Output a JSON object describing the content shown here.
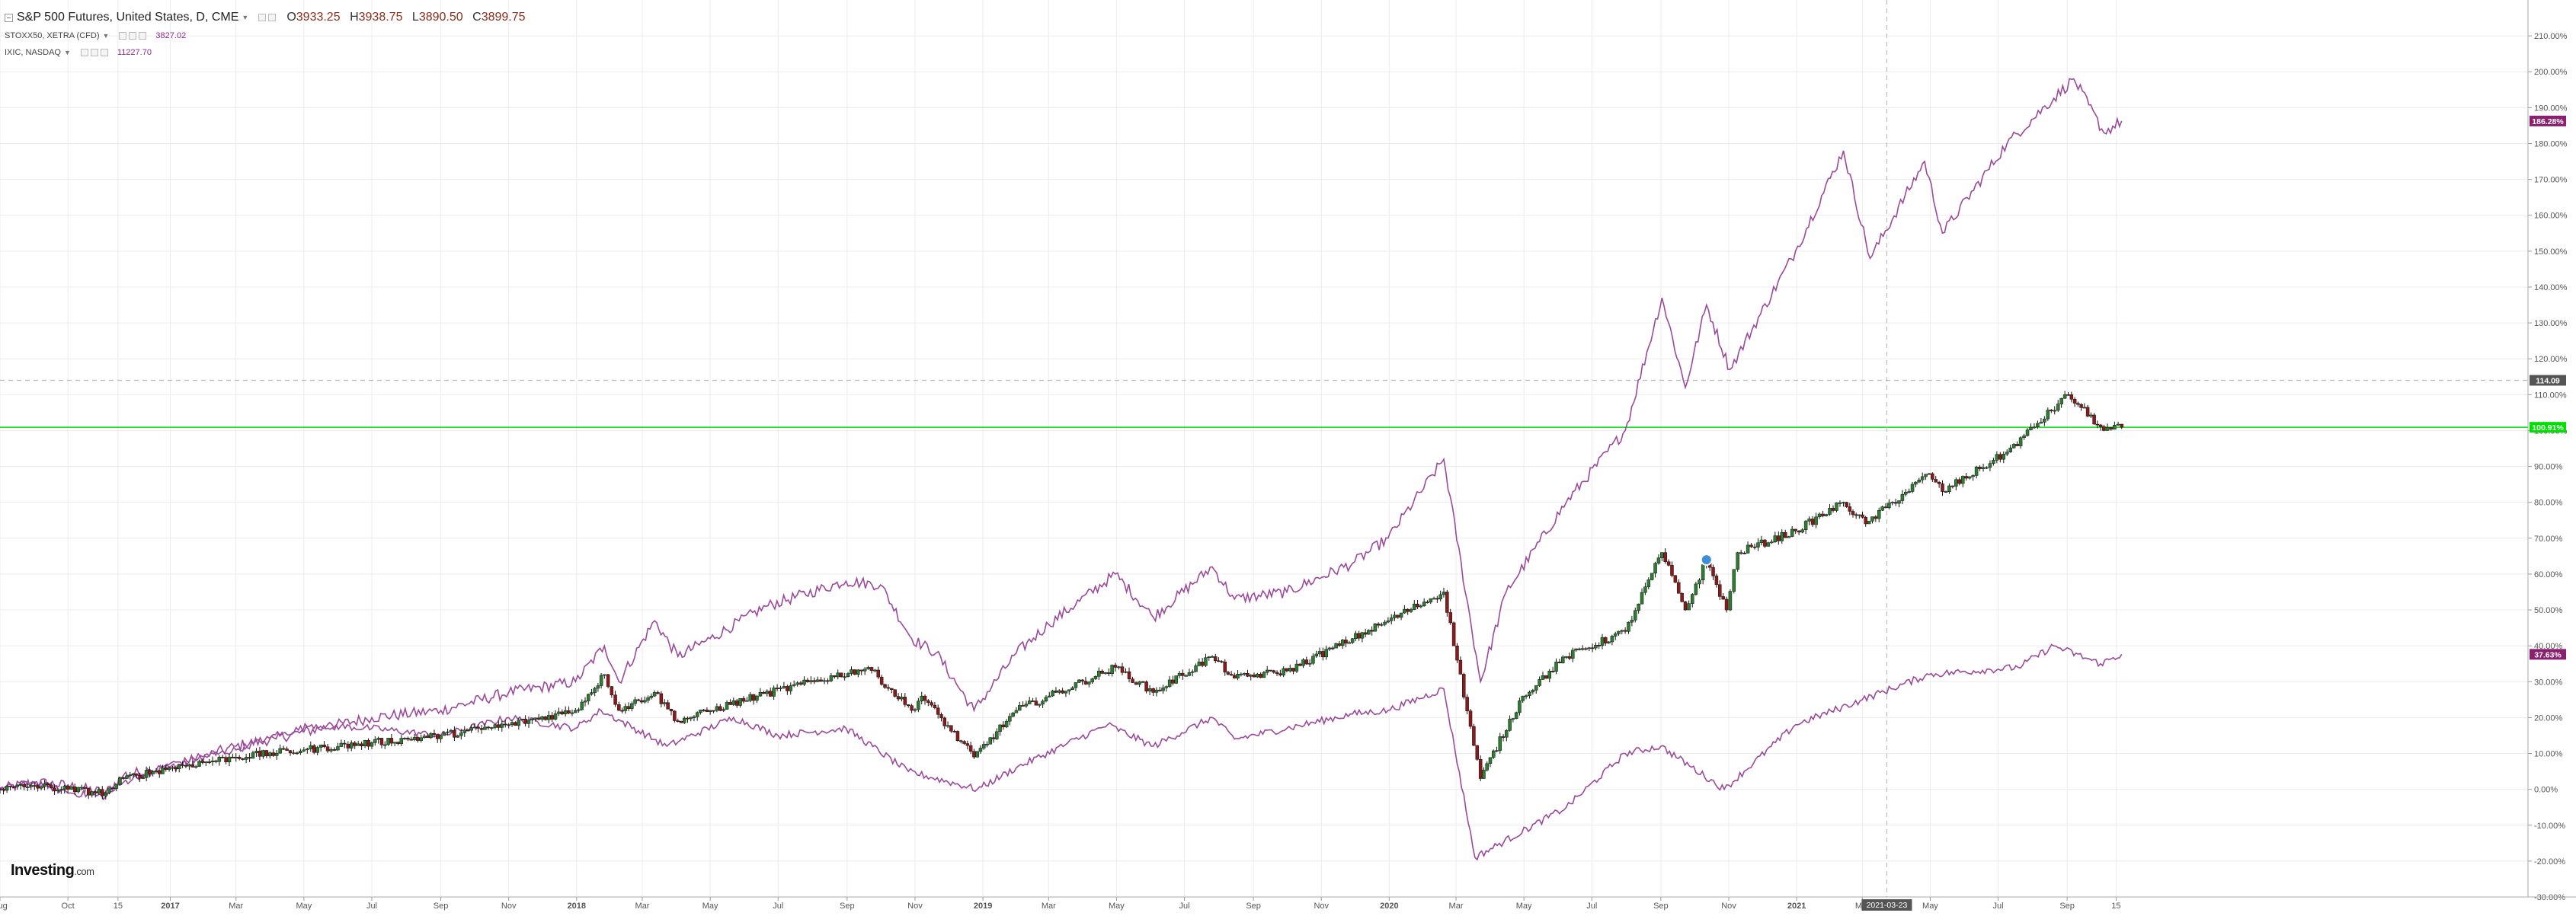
{
  "legend": {
    "main": {
      "title": "S&P 500 Futures, United States, D, CME",
      "open_label": "O",
      "open": "3933.25",
      "high_label": "H",
      "high": "3938.75",
      "low_label": "L",
      "low": "3890.50",
      "close_label": "C",
      "close": "3899.75"
    },
    "sub": [
      {
        "title": "STOXX50, XETRA (CFD)",
        "value": "3827.02"
      },
      {
        "title": "IXIC, NASDAQ",
        "value": "11227.70"
      }
    ]
  },
  "logo": {
    "brand": "Investing",
    "suffix": ".com"
  },
  "colors": {
    "compare_line": "#9b4a9b",
    "candle_up": "#2e7d32",
    "candle_down": "#8b1a1a",
    "price_line": "#00e000",
    "axis_text": "#555555",
    "grid": "#ececec"
  },
  "chart_data": {
    "type": "line",
    "y_unit": "%",
    "ylim": [
      -30,
      220
    ],
    "y_ticks": [
      "-30.00%",
      "-20.00%",
      "-10.00%",
      "0.00%",
      "10.00%",
      "20.00%",
      "30.00%",
      "40.00%",
      "50.00%",
      "60.00%",
      "70.00%",
      "80.00%",
      "90.00%",
      "100.00%",
      "110.00%",
      "120.00%",
      "130.00%",
      "140.00%",
      "150.00%",
      "160.00%",
      "170.00%",
      "180.00%",
      "190.00%",
      "200.00%",
      "210.00%"
    ],
    "x_start": "2016-08-01",
    "x_end": "2022-10-20",
    "x_ticks": [
      {
        "date": "2016-08-01",
        "label": "Aug",
        "bold": false
      },
      {
        "date": "2016-10-01",
        "label": "Oct",
        "bold": false
      },
      {
        "date": "2016-11-15",
        "label": "15",
        "bold": false
      },
      {
        "date": "2017-01-01",
        "label": "2017",
        "bold": true
      },
      {
        "date": "2017-03-01",
        "label": "Mar",
        "bold": false
      },
      {
        "date": "2017-05-01",
        "label": "May",
        "bold": false
      },
      {
        "date": "2017-07-01",
        "label": "Jul",
        "bold": false
      },
      {
        "date": "2017-09-01",
        "label": "Sep",
        "bold": false
      },
      {
        "date": "2017-11-01",
        "label": "Nov",
        "bold": false
      },
      {
        "date": "2018-01-01",
        "label": "2018",
        "bold": true
      },
      {
        "date": "2018-03-01",
        "label": "Mar",
        "bold": false
      },
      {
        "date": "2018-05-01",
        "label": "May",
        "bold": false
      },
      {
        "date": "2018-07-01",
        "label": "Jul",
        "bold": false
      },
      {
        "date": "2018-09-01",
        "label": "Sep",
        "bold": false
      },
      {
        "date": "2018-11-01",
        "label": "Nov",
        "bold": false
      },
      {
        "date": "2019-01-01",
        "label": "2019",
        "bold": true
      },
      {
        "date": "2019-03-01",
        "label": "Mar",
        "bold": false
      },
      {
        "date": "2019-05-01",
        "label": "May",
        "bold": false
      },
      {
        "date": "2019-07-01",
        "label": "Jul",
        "bold": false
      },
      {
        "date": "2019-09-01",
        "label": "Sep",
        "bold": false
      },
      {
        "date": "2019-11-01",
        "label": "Nov",
        "bold": false
      },
      {
        "date": "2020-01-01",
        "label": "2020",
        "bold": true
      },
      {
        "date": "2020-03-01",
        "label": "Mar",
        "bold": false
      },
      {
        "date": "2020-05-01",
        "label": "May",
        "bold": false
      },
      {
        "date": "2020-07-01",
        "label": "Jul",
        "bold": false
      },
      {
        "date": "2020-09-01",
        "label": "Sep",
        "bold": false
      },
      {
        "date": "2020-11-01",
        "label": "Nov",
        "bold": false
      },
      {
        "date": "2021-01-01",
        "label": "2021",
        "bold": true
      },
      {
        "date": "2021-03-01",
        "label": "Mar",
        "bold": false
      },
      {
        "date": "2021-05-01",
        "label": "May",
        "bold": false
      },
      {
        "date": "2021-07-01",
        "label": "Jul",
        "bold": false
      },
      {
        "date": "2021-09-01",
        "label": "Sep",
        "bold": false
      },
      {
        "date": "2021-10-15",
        "label": "15",
        "bold": false
      }
    ],
    "crosshair": {
      "date": "2021-03-23",
      "label": "2021-03-23"
    },
    "hline_dashed": {
      "value": 114,
      "label": "114.09"
    },
    "hline_current": {
      "value": 100.91,
      "label": "100.91%"
    },
    "series": [
      {
        "name": "IXIC, NASDAQ",
        "style": "line",
        "last_label": "186.28%",
        "points": [
          [
            "2016-08-01",
            0
          ],
          [
            "2016-09-01",
            2
          ],
          [
            "2016-10-01",
            1
          ],
          [
            "2016-11-04",
            -1
          ],
          [
            "2016-11-20",
            4
          ],
          [
            "2016-12-31",
            6
          ],
          [
            "2017-03-01",
            12
          ],
          [
            "2017-05-01",
            16
          ],
          [
            "2017-07-01",
            20
          ],
          [
            "2017-09-01",
            22
          ],
          [
            "2017-11-01",
            27
          ],
          [
            "2017-12-31",
            30
          ],
          [
            "2018-01-26",
            40
          ],
          [
            "2018-02-08",
            30
          ],
          [
            "2018-03-12",
            47
          ],
          [
            "2018-04-02",
            37
          ],
          [
            "2018-05-01",
            42
          ],
          [
            "2018-06-20",
            51
          ],
          [
            "2018-08-31",
            58
          ],
          [
            "2018-10-01",
            57
          ],
          [
            "2018-10-29",
            42
          ],
          [
            "2018-11-20",
            38
          ],
          [
            "2018-12-24",
            22
          ],
          [
            "2019-01-31",
            38
          ],
          [
            "2019-03-01",
            46
          ],
          [
            "2019-04-30",
            60
          ],
          [
            "2019-06-03",
            48
          ],
          [
            "2019-07-26",
            62
          ],
          [
            "2019-08-15",
            53
          ],
          [
            "2019-10-01",
            55
          ],
          [
            "2019-11-29",
            63
          ],
          [
            "2019-12-31",
            70
          ],
          [
            "2020-02-19",
            92
          ],
          [
            "2020-03-23",
            30
          ],
          [
            "2020-04-15",
            55
          ],
          [
            "2020-06-08",
            80
          ],
          [
            "2020-07-31",
            100
          ],
          [
            "2020-09-02",
            137
          ],
          [
            "2020-09-23",
            112
          ],
          [
            "2020-10-12",
            135
          ],
          [
            "2020-11-02",
            117
          ],
          [
            "2020-12-31",
            150
          ],
          [
            "2021-02-12",
            178
          ],
          [
            "2021-03-08",
            148
          ],
          [
            "2021-04-26",
            175
          ],
          [
            "2021-05-12",
            155
          ],
          [
            "2021-07-09",
            180
          ],
          [
            "2021-09-07",
            198
          ],
          [
            "2021-10-04",
            183
          ],
          [
            "2021-10-20",
            186.28
          ]
        ]
      },
      {
        "name": "STOXX50, XETRA (CFD)",
        "style": "line",
        "last_label": "37.63%",
        "points": [
          [
            "2016-08-01",
            0
          ],
          [
            "2016-09-01",
            2
          ],
          [
            "2016-10-03",
            -1
          ],
          [
            "2016-11-04",
            -2
          ],
          [
            "2016-11-20",
            2
          ],
          [
            "2016-12-31",
            7
          ],
          [
            "2017-03-01",
            11
          ],
          [
            "2017-05-08",
            18
          ],
          [
            "2017-07-01",
            17
          ],
          [
            "2017-09-01",
            15
          ],
          [
            "2017-11-01",
            20
          ],
          [
            "2017-12-31",
            17
          ],
          [
            "2018-01-23",
            22
          ],
          [
            "2018-03-23",
            12
          ],
          [
            "2018-05-22",
            20
          ],
          [
            "2018-07-01",
            15
          ],
          [
            "2018-08-31",
            17
          ],
          [
            "2018-10-26",
            5
          ],
          [
            "2018-12-27",
            0
          ],
          [
            "2019-01-31",
            6
          ],
          [
            "2019-04-23",
            18
          ],
          [
            "2019-06-03",
            12
          ],
          [
            "2019-07-26",
            20
          ],
          [
            "2019-08-15",
            14
          ],
          [
            "2019-10-01",
            17
          ],
          [
            "2019-11-29",
            21
          ],
          [
            "2019-12-31",
            22
          ],
          [
            "2020-02-19",
            28
          ],
          [
            "2020-03-18",
            -19
          ],
          [
            "2020-06-08",
            -5
          ],
          [
            "2020-07-31",
            10
          ],
          [
            "2020-09-01",
            12
          ],
          [
            "2020-10-28",
            0
          ],
          [
            "2020-12-31",
            18
          ],
          [
            "2021-03-01",
            25
          ],
          [
            "2021-04-30",
            32
          ],
          [
            "2021-07-19",
            34
          ],
          [
            "2021-08-20",
            40
          ],
          [
            "2021-10-01",
            35
          ],
          [
            "2021-10-20",
            37.63
          ]
        ]
      },
      {
        "name": "S&P 500 Futures, United States, D, CME",
        "style": "candle",
        "last_label": "100.91%",
        "points": [
          [
            "2016-08-01",
            0
          ],
          [
            "2016-09-01",
            1
          ],
          [
            "2016-10-01",
            0
          ],
          [
            "2016-11-04",
            -1
          ],
          [
            "2016-11-20",
            3
          ],
          [
            "2016-12-31",
            6
          ],
          [
            "2017-03-01",
            9
          ],
          [
            "2017-05-01",
            11
          ],
          [
            "2017-07-01",
            13
          ],
          [
            "2017-09-01",
            15
          ],
          [
            "2017-11-01",
            18
          ],
          [
            "2017-12-31",
            22
          ],
          [
            "2018-01-26",
            32
          ],
          [
            "2018-02-08",
            22
          ],
          [
            "2018-03-12",
            27
          ],
          [
            "2018-04-02",
            19
          ],
          [
            "2018-05-01",
            22
          ],
          [
            "2018-06-12",
            26
          ],
          [
            "2018-09-20",
            34
          ],
          [
            "2018-10-29",
            22
          ],
          [
            "2018-11-07",
            26
          ],
          [
            "2018-12-24",
            9
          ],
          [
            "2019-01-31",
            22
          ],
          [
            "2019-04-30",
            34
          ],
          [
            "2019-06-03",
            27
          ],
          [
            "2019-07-26",
            37
          ],
          [
            "2019-08-15",
            31
          ],
          [
            "2019-10-01",
            33
          ],
          [
            "2019-11-29",
            42
          ],
          [
            "2019-12-31",
            47
          ],
          [
            "2020-02-19",
            55
          ],
          [
            "2020-03-23",
            3
          ],
          [
            "2020-04-30",
            26
          ],
          [
            "2020-06-08",
            37
          ],
          [
            "2020-07-31",
            44
          ],
          [
            "2020-09-02",
            66
          ],
          [
            "2020-09-23",
            50
          ],
          [
            "2020-10-12",
            64
          ],
          [
            "2020-10-30",
            50
          ],
          [
            "2020-11-09",
            66
          ],
          [
            "2020-12-31",
            72
          ],
          [
            "2021-02-12",
            80
          ],
          [
            "2021-03-04",
            74
          ],
          [
            "2021-04-30",
            88
          ],
          [
            "2021-05-12",
            83
          ],
          [
            "2021-07-09",
            94
          ],
          [
            "2021-09-02",
            110
          ],
          [
            "2021-10-04",
            100
          ],
          [
            "2021-10-20",
            100.91
          ]
        ]
      }
    ],
    "marker": {
      "date": "2020-10-12",
      "value": 64,
      "series": "S&P 500 Futures, United States, D, CME"
    }
  }
}
